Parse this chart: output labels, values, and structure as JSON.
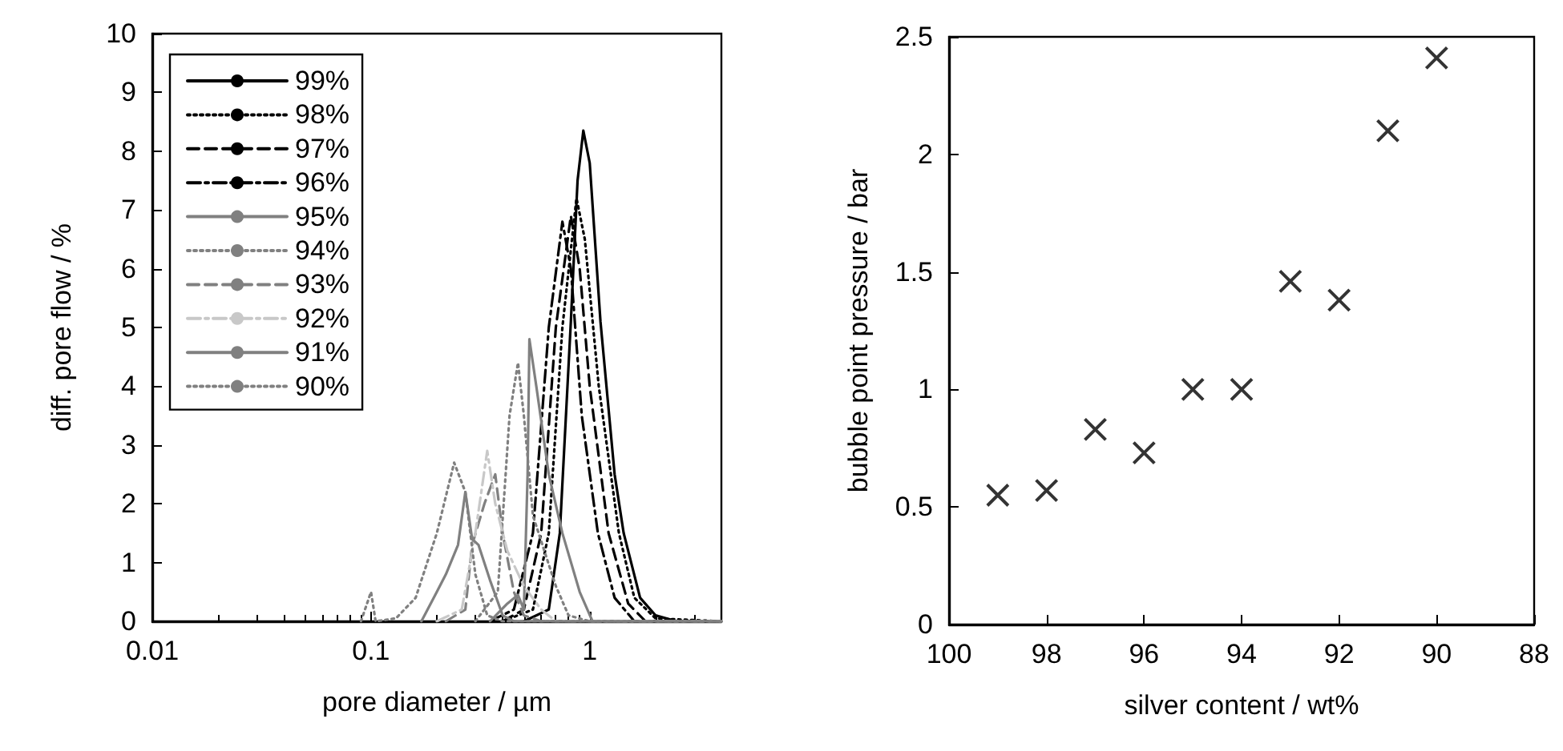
{
  "chart_data": [
    {
      "type": "line",
      "xlabel": "pore diameter / µm",
      "ylabel": "diff. pore flow / %",
      "log": "x",
      "xlim": [
        0.01,
        4
      ],
      "xticks": [
        0.01,
        0.1,
        1
      ],
      "ylim": [
        0,
        10
      ],
      "yticks": [
        0,
        1,
        2,
        3,
        4,
        5,
        6,
        7,
        8,
        9,
        10
      ],
      "grid": false,
      "legend": "top left",
      "marker": "none",
      "series": [
        {
          "name": "99%",
          "color": "#000000",
          "line_style": "solid",
          "x": [
            0.5,
            0.65,
            0.73,
            0.82,
            0.88,
            0.935,
            1.0,
            1.12,
            1.3,
            1.43,
            1.7,
            2.0,
            2.5,
            4
          ],
          "values": [
            0,
            0.2,
            1.5,
            5.1,
            7.5,
            8.35,
            7.8,
            5.1,
            2.5,
            1.5,
            0.4,
            0.1,
            0,
            0
          ]
        },
        {
          "name": "98%",
          "color": "#000000",
          "line_style": "dotted",
          "x": [
            0.4,
            0.55,
            0.65,
            0.75,
            0.87,
            0.95,
            1.1,
            1.36,
            1.6,
            2.0,
            4
          ],
          "values": [
            0,
            0.2,
            1.5,
            5,
            7.2,
            6.5,
            4,
            1.5,
            0.4,
            0.05,
            0
          ]
        },
        {
          "name": "97%",
          "color": "#000000",
          "line_style": "dashed",
          "x": [
            0.4,
            0.5,
            0.6,
            0.7,
            0.82,
            0.9,
            1.0,
            1.22,
            1.5,
            1.8,
            4
          ],
          "values": [
            0,
            0.2,
            1.5,
            5,
            6.9,
            6,
            4,
            1.5,
            0.3,
            0,
            0
          ]
        },
        {
          "name": "96%",
          "color": "#000000",
          "line_style": "dashdot",
          "x": [
            0.35,
            0.45,
            0.55,
            0.65,
            0.75,
            0.82,
            0.92,
            1.09,
            1.3,
            1.6,
            4
          ],
          "values": [
            0,
            0.2,
            1.5,
            5,
            6.8,
            6,
            3.5,
            1.5,
            0.4,
            0,
            0
          ]
        },
        {
          "name": "95%",
          "color": "#808080",
          "line_style": "solid",
          "x": [
            0.35,
            0.42,
            0.47,
            0.5,
            0.52,
            0.53,
            0.57,
            0.65,
            0.75,
            0.9,
            1.03,
            4
          ],
          "values": [
            0,
            0.3,
            0.45,
            0.2,
            2.5,
            4.8,
            4,
            2.5,
            1.5,
            0.5,
            0,
            0
          ]
        },
        {
          "name": "94%",
          "color": "#808080",
          "line_style": "dotted",
          "x": [
            0.3,
            0.38,
            0.43,
            0.47,
            0.5,
            0.55,
            0.62,
            0.7,
            0.8,
            1.0,
            4
          ],
          "values": [
            0,
            0.5,
            3.5,
            4.4,
            3.5,
            1.8,
            1.2,
            0.6,
            0.1,
            0,
            0
          ]
        },
        {
          "name": "93%",
          "color": "#808080",
          "line_style": "dashed",
          "x": [
            0.22,
            0.27,
            0.29,
            0.33,
            0.37,
            0.4,
            0.45,
            0.5,
            0.6,
            4
          ],
          "values": [
            0,
            0.2,
            1.3,
            2.0,
            2.5,
            1.5,
            0.5,
            0.1,
            0,
            0
          ]
        },
        {
          "name": "92%",
          "color": "#c8c8c8",
          "line_style": "dashdot",
          "x": [
            0.2,
            0.26,
            0.3,
            0.34,
            0.37,
            0.42,
            0.5,
            0.6,
            0.7,
            4
          ],
          "values": [
            0,
            0.2,
            1.5,
            2.9,
            2,
            1.2,
            0.6,
            0.2,
            0,
            0
          ]
        },
        {
          "name": "91%",
          "color": "#808080",
          "line_style": "solid",
          "x": [
            0.17,
            0.2,
            0.22,
            0.25,
            0.27,
            0.29,
            0.31,
            0.35,
            0.4,
            0.45,
            4
          ],
          "values": [
            0,
            0.5,
            0.8,
            1.3,
            2.2,
            1.4,
            1.3,
            0.7,
            0.1,
            0,
            0
          ]
        },
        {
          "name": "90%",
          "color": "#808080",
          "line_style": "dotted",
          "x": [
            0.09,
            0.1,
            0.105,
            0.13,
            0.16,
            0.2,
            0.24,
            0.27,
            0.3,
            0.34,
            0.4,
            4
          ],
          "values": [
            0,
            0.5,
            0,
            0.05,
            0.4,
            1.5,
            2.7,
            2.2,
            0.8,
            0.1,
            0,
            0
          ]
        }
      ]
    },
    {
      "type": "scatter",
      "xlabel": "silver content / wt%",
      "ylabel": "bubble point pressure / bar",
      "xlim": [
        100,
        88
      ],
      "xticks": [
        100,
        98,
        96,
        94,
        92,
        90,
        88
      ],
      "ylim": [
        0,
        2.5
      ],
      "yticks": [
        0,
        0.5,
        1,
        1.5,
        2,
        2.5
      ],
      "grid": false,
      "legend": false,
      "marker": "cross",
      "series": [
        {
          "color": "#000000",
          "x": [
            99,
            98,
            97,
            96,
            95,
            94,
            93,
            92,
            91,
            90
          ],
          "values": [
            0.55,
            0.57,
            0.83,
            0.73,
            1.0,
            1.0,
            1.46,
            1.38,
            2.1,
            2.41
          ]
        }
      ]
    }
  ]
}
